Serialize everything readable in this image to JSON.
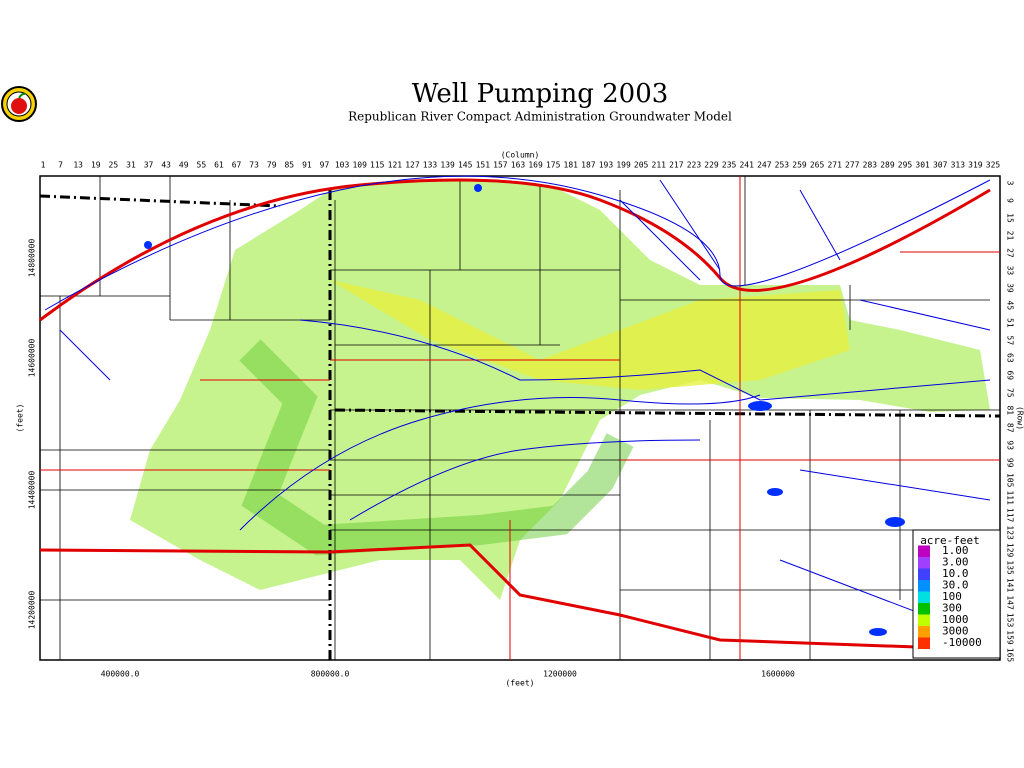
{
  "header": {
    "title": "Well Pumping 2003",
    "subtitle": "Republican River Compact Administration Groundwater Model"
  },
  "map": {
    "top_axis": {
      "label": "(Column)",
      "ticks": [
        1,
        7,
        13,
        19,
        25,
        31,
        37,
        43,
        49,
        55,
        61,
        67,
        73,
        79,
        85,
        91,
        97,
        103,
        109,
        115,
        121,
        127,
        133,
        139,
        145,
        151,
        157,
        163,
        169,
        175,
        181,
        187,
        193,
        199,
        205,
        211,
        217,
        223,
        229,
        235,
        241,
        247,
        253,
        259,
        265,
        271,
        277,
        283,
        289,
        295,
        301,
        307,
        313,
        319,
        325
      ]
    },
    "right_axis": {
      "label": "(Row)",
      "ticks": [
        3,
        9,
        15,
        21,
        27,
        33,
        39,
        45,
        51,
        57,
        63,
        69,
        75,
        81,
        87,
        93,
        99,
        105,
        111,
        117,
        123,
        129,
        135,
        141,
        147,
        153,
        159,
        165
      ]
    },
    "left_axis": {
      "label": "(feet)",
      "ticks": [
        "14800000",
        "14600000",
        "14400000",
        "14200000"
      ]
    },
    "bottom_axis": {
      "label": "(feet)",
      "ticks": [
        "400000.0",
        "800000.0",
        "1200000",
        "1600000"
      ]
    },
    "legend": {
      "title": "acre-feet",
      "items": [
        {
          "label": "1.00",
          "color": "#c000c0"
        },
        {
          "label": "3.00",
          "color": "#a040ff"
        },
        {
          "label": "10.0",
          "color": "#4040ff"
        },
        {
          "label": "30.0",
          "color": "#0090ff"
        },
        {
          "label": "100",
          "color": "#00e0e0"
        },
        {
          "label": "300",
          "color": "#00c000"
        },
        {
          "label": "1000",
          "color": "#c0ff00"
        },
        {
          "label": "3000",
          "color": "#ffa000"
        },
        {
          "label": "-10000",
          "color": "#ff3000"
        }
      ]
    }
  }
}
